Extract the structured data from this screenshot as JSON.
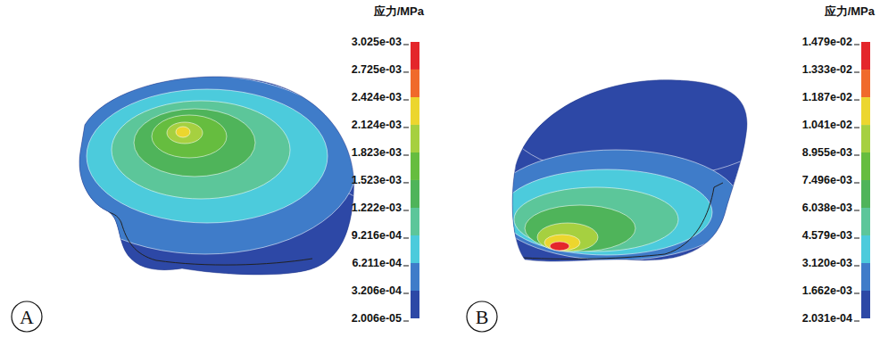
{
  "chart_data": [
    {
      "type": "contour",
      "panel_label": "A",
      "colorbar_title": "应力/MPa",
      "colorbar_lim": [
        2.006e-05,
        0.003025
      ],
      "colorbar_ticks": [
        {
          "value": 0.003025,
          "label": "3.025e-03"
        },
        {
          "value": 0.002725,
          "label": "2.725e-03"
        },
        {
          "value": 0.002424,
          "label": "2.424e-03"
        },
        {
          "value": 0.002124,
          "label": "2.124e-03"
        },
        {
          "value": 0.001823,
          "label": "1.823e-03"
        },
        {
          "value": 0.001523,
          "label": "1.523e-03"
        },
        {
          "value": 0.001222,
          "label": "1.222e-03"
        },
        {
          "value": 0.0009216,
          "label": "9.216e-04"
        },
        {
          "value": 0.0006211,
          "label": "6.211e-04"
        },
        {
          "value": 0.0003206,
          "label": "3.206e-04"
        },
        {
          "value": 2.006e-05,
          "label": "2.006e-05"
        }
      ],
      "colors": [
        "#e4262b",
        "#f06a2b",
        "#ecd62e",
        "#a6d040",
        "#66bd3f",
        "#4fb45a",
        "#5cc69a",
        "#4ccbdc",
        "#3f7cc9",
        "#2d48a6"
      ],
      "values": [
        0.00015,
        0.00045,
        0.00075,
        0.00105,
        0.00135,
        0.00165,
        0.00195,
        0.0022
      ]
    },
    {
      "type": "contour",
      "panel_label": "B",
      "colorbar_title": "应力/MPa",
      "colorbar_lim": [
        0.0002031,
        0.01479
      ],
      "colorbar_ticks": [
        {
          "value": 0.01479,
          "label": "1.479e-02"
        },
        {
          "value": 0.01333,
          "label": "1.333e-02"
        },
        {
          "value": 0.01187,
          "label": "1.187e-02"
        },
        {
          "value": 0.01041,
          "label": "1.041e-02"
        },
        {
          "value": 0.008955,
          "label": "8.955e-03"
        },
        {
          "value": 0.007496,
          "label": "7.496e-03"
        },
        {
          "value": 0.006038,
          "label": "6.038e-03"
        },
        {
          "value": 0.004579,
          "label": "4.579e-03"
        },
        {
          "value": 0.00312,
          "label": "3.120e-03"
        },
        {
          "value": 0.001662,
          "label": "1.662e-03"
        },
        {
          "value": 0.0002031,
          "label": "2.031e-04"
        }
      ],
      "colors": [
        "#e4262b",
        "#f06a2b",
        "#ecd62e",
        "#a6d040",
        "#66bd3f",
        "#4fb45a",
        "#5cc69a",
        "#4ccbdc",
        "#3f7cc9",
        "#2d48a6"
      ],
      "values": [
        0.0009,
        0.0024,
        0.0038,
        0.0053,
        0.0068,
        0.0096,
        0.011,
        0.014
      ]
    }
  ]
}
